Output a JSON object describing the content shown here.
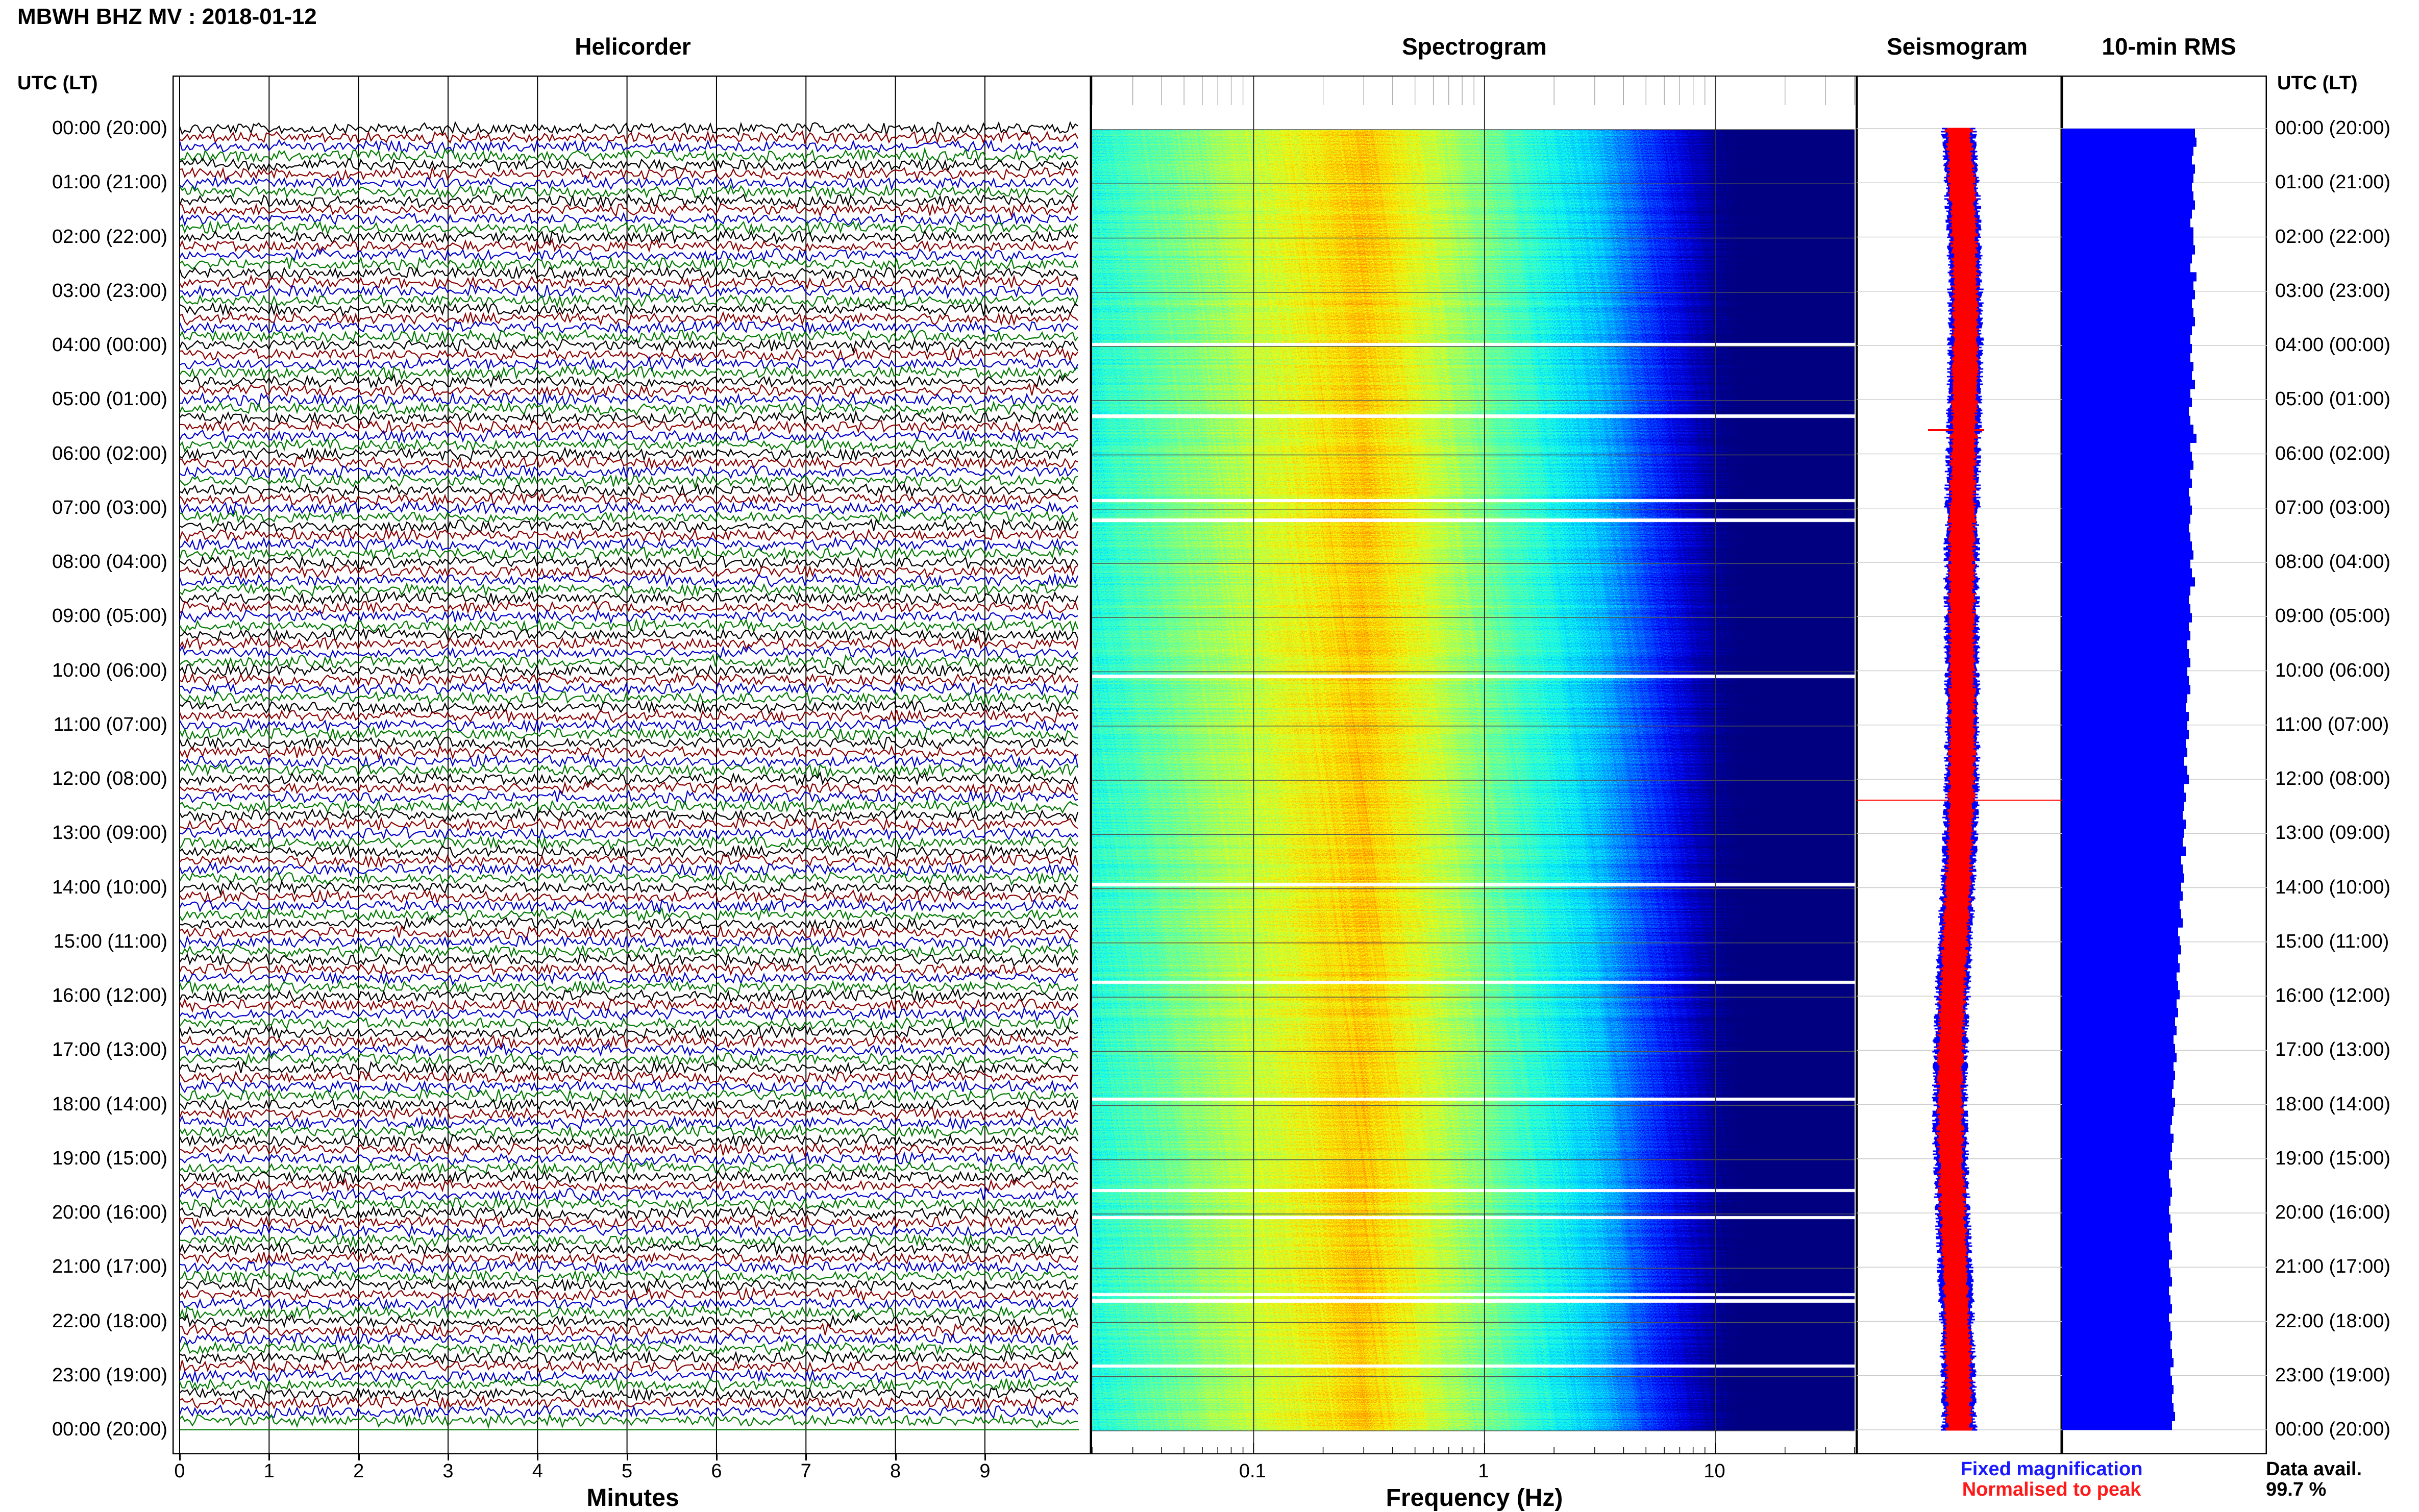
{
  "header": {
    "title": "MBWH BHZ MV : 2018-01-12",
    "utc_label_left": "UTC (LT)",
    "utc_label_right": "UTC (LT)"
  },
  "panels": {
    "helicorder": "Helicorder",
    "spectrogram": "Spectrogram",
    "seismogram": "Seismogram",
    "rms": "10-min RMS"
  },
  "time_labels": [
    "00:00 (20:00)",
    "01:00 (21:00)",
    "02:00 (22:00)",
    "03:00 (23:00)",
    "04:00 (00:00)",
    "05:00 (01:00)",
    "06:00 (02:00)",
    "07:00 (03:00)",
    "08:00 (04:00)",
    "09:00 (05:00)",
    "10:00 (06:00)",
    "11:00 (07:00)",
    "12:00 (08:00)",
    "13:00 (09:00)",
    "14:00 (10:00)",
    "15:00 (11:00)",
    "16:00 (12:00)",
    "17:00 (13:00)",
    "18:00 (14:00)",
    "19:00 (15:00)",
    "20:00 (16:00)",
    "21:00 (17:00)",
    "22:00 (18:00)",
    "23:00 (19:00)",
    "00:00 (20:00)"
  ],
  "helicorder_axis": {
    "ticks": [
      "0",
      "1",
      "2",
      "3",
      "4",
      "5",
      "6",
      "7",
      "8",
      "9"
    ],
    "title": "Minutes"
  },
  "spectrogram_axis": {
    "ticks": [
      "0.1",
      "1",
      "10"
    ],
    "title": "Frequency (Hz)",
    "scale": "log"
  },
  "legend": {
    "fixed": "Fixed magnification",
    "normalised": "Normalised to peak",
    "fixed_color": "#1a1aff",
    "normalised_color": "#ff1a1a"
  },
  "data_availability": {
    "label": "Data avail.",
    "value": "99.7 %"
  },
  "colors": {
    "trace_cycle": [
      "#000000",
      "#8b0000",
      "#0000cc",
      "#007a00"
    ],
    "rms_bar": "#0000ff",
    "seismogram_normalised": "#ff0000",
    "seismogram_fixed": "#0000ff"
  },
  "chart_data": {
    "type": "bar",
    "title": "10-min RMS",
    "orientation": "horizontal",
    "bins_per_hour": 6,
    "series": [
      {
        "name": "10-min RMS",
        "values": [
          0.87,
          0.88,
          0.86,
          0.85,
          0.87,
          0.86,
          0.85,
          0.86,
          0.87,
          0.85,
          0.84,
          0.86,
          0.86,
          0.87,
          0.85,
          0.84,
          0.88,
          0.86,
          0.87,
          0.85,
          0.86,
          0.87,
          0.85,
          0.84,
          0.85,
          0.84,
          0.86,
          0.85,
          0.87,
          0.84,
          0.85,
          0.83,
          0.84,
          0.86,
          0.88,
          0.84,
          0.85,
          0.86,
          0.84,
          0.85,
          0.83,
          0.84,
          0.85,
          0.84,
          0.83,
          0.84,
          0.85,
          0.86,
          0.84,
          0.85,
          0.87,
          0.84,
          0.83,
          0.84,
          0.85,
          0.83,
          0.84,
          0.82,
          0.83,
          0.84,
          0.82,
          0.83,
          0.84,
          0.82,
          0.81,
          0.83,
          0.82,
          0.83,
          0.81,
          0.82,
          0.8,
          0.82,
          0.83,
          0.8,
          0.81,
          0.8,
          0.79,
          0.81,
          0.8,
          0.79,
          0.81,
          0.78,
          0.79,
          0.8,
          0.78,
          0.79,
          0.77,
          0.78,
          0.79,
          0.76,
          0.77,
          0.78,
          0.76,
          0.77,
          0.75,
          0.76,
          0.77,
          0.75,
          0.76,
          0.74,
          0.75,
          0.73,
          0.74,
          0.75,
          0.73,
          0.74,
          0.73,
          0.72,
          0.74,
          0.73,
          0.72,
          0.71,
          0.73,
          0.72,
          0.71,
          0.72,
          0.7,
          0.71,
          0.72,
          0.71,
          0.7,
          0.71,
          0.72,
          0.7,
          0.71,
          0.72,
          0.7,
          0.71,
          0.72,
          0.7,
          0.71,
          0.72,
          0.7,
          0.71,
          0.72,
          0.71,
          0.72,
          0.73,
          0.71,
          0.72,
          0.73,
          0.72,
          0.73,
          0.74,
          0.72
        ]
      }
    ]
  }
}
